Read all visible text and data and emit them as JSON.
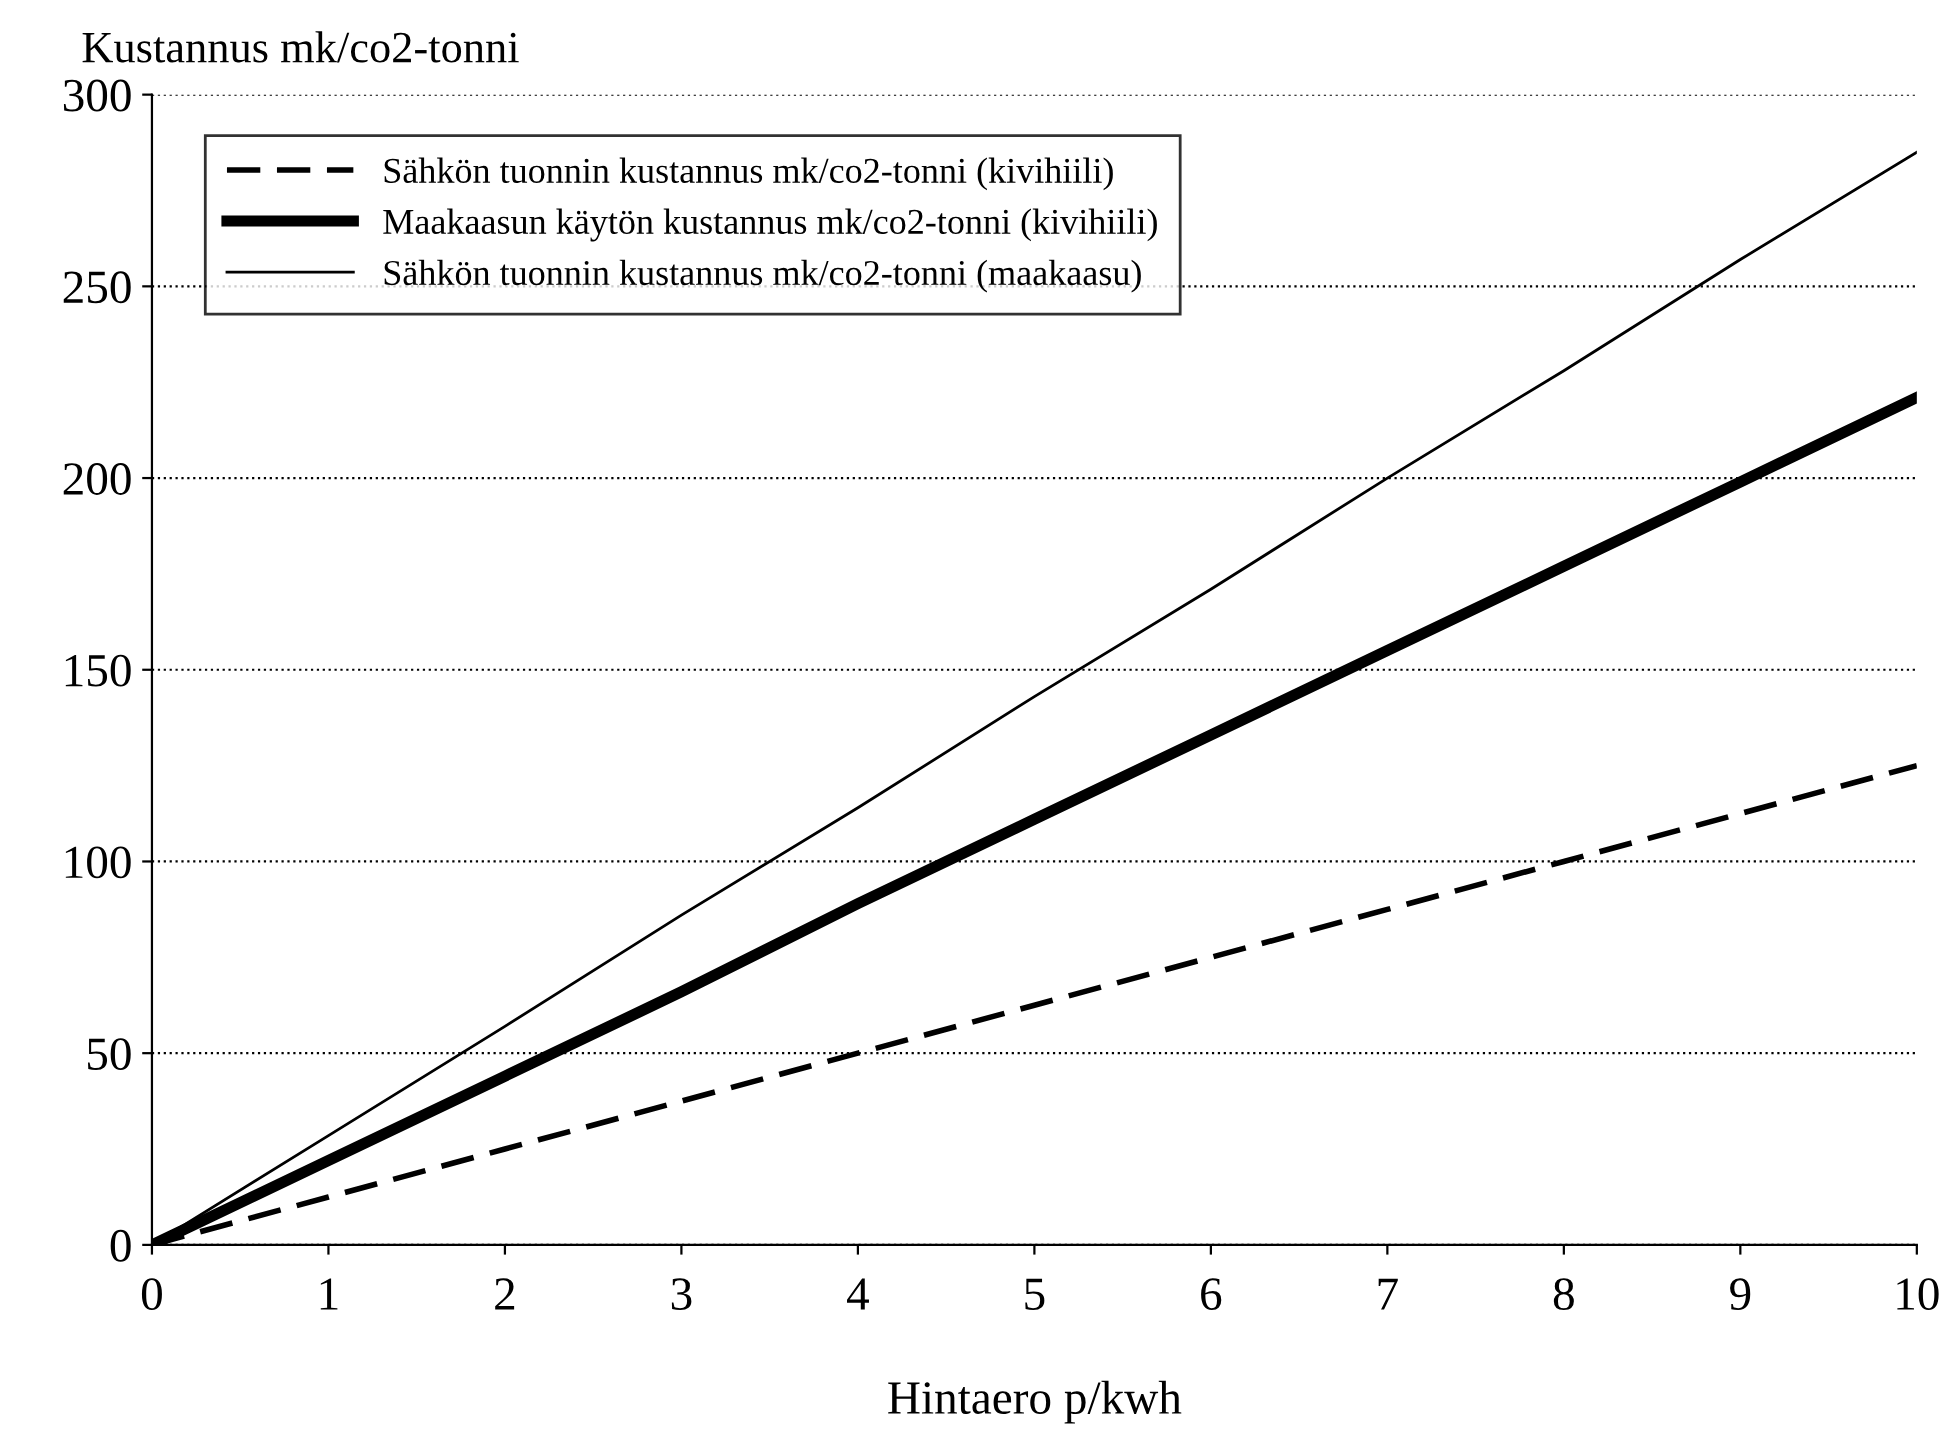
{
  "chart_data": {
    "type": "line",
    "xlabel": "Hintaero p/kwh",
    "ylabel": "Kustannus mk/co2-tonni",
    "x": [
      0,
      1,
      2,
      3,
      4,
      5,
      6,
      7,
      8,
      9,
      10
    ],
    "series": [
      {
        "name": "Sähkön tuonnin kustannus mk/co2-tonni (kivihiili)",
        "color": "#000000",
        "line_style": "dashed",
        "values": [
          0,
          12.5,
          25,
          37.5,
          50,
          62.5,
          75,
          87.5,
          100,
          112.5,
          125
        ]
      },
      {
        "name": "Maakaasun käytön kustannus mk/co2-tonni (kivihiili)",
        "color": "#000000",
        "line_style": "solid",
        "values": [
          0,
          22,
          44,
          66,
          89,
          111,
          133,
          155,
          177,
          199,
          221
        ]
      },
      {
        "name": "Sähkön tuonnin kustannus mk/co2-tonni (maakaasu)",
        "color": "#000000",
        "line_style": "solid",
        "values": [
          0,
          28.5,
          57,
          86,
          114,
          143,
          171,
          200,
          228,
          257,
          285
        ]
      }
    ],
    "xlim": [
      0,
      10
    ],
    "xticks": [
      0,
      1,
      2,
      3,
      4,
      5,
      6,
      7,
      8,
      9,
      10
    ],
    "ylim": [
      0,
      300
    ],
    "yticks": [
      0,
      50,
      100,
      150,
      200,
      250,
      300
    ],
    "grid": "y",
    "legend": "top left",
    "marker": "none"
  }
}
